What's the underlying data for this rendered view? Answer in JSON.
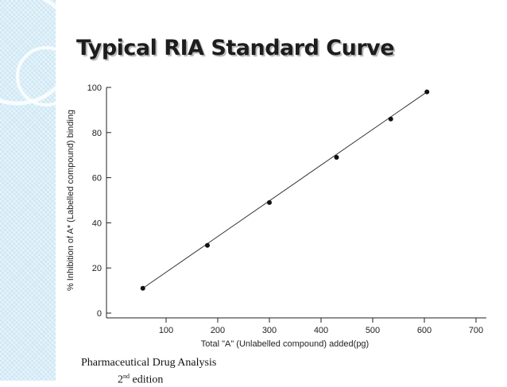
{
  "slide": {
    "title": "Typical RIA Standard Curve",
    "source_line1": "Pharmaceutical Drug Analysis",
    "source_edition_num": "2",
    "source_edition_sup": "nd",
    "source_edition_word": " edition"
  },
  "colors": {
    "band": "#cfe8f5",
    "ink": "#111111",
    "title_shadow": "#bdbdbd"
  },
  "chart_data": {
    "type": "scatter",
    "xlabel": "Total \"A\" (Unlabelled compound) added(pg)",
    "ylabel": "% Inhibition of A* (Labelled compound) binding",
    "xlim": [
      0,
      720
    ],
    "ylim": [
      0,
      100
    ],
    "x_ticks": [
      100,
      200,
      300,
      400,
      500,
      600,
      700
    ],
    "y_ticks": [
      0,
      20,
      40,
      60,
      80,
      100
    ],
    "grid": false,
    "points": [
      {
        "x": 55,
        "y": 11
      },
      {
        "x": 180,
        "y": 30
      },
      {
        "x": 300,
        "y": 49
      },
      {
        "x": 430,
        "y": 69
      },
      {
        "x": 535,
        "y": 86
      },
      {
        "x": 605,
        "y": 98
      }
    ],
    "fit_line": {
      "x0": 55,
      "y0": 11,
      "x1": 605,
      "y1": 98
    }
  }
}
